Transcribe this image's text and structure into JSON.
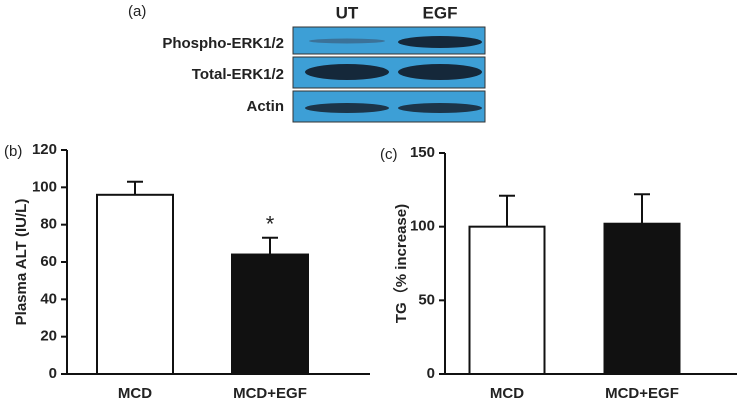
{
  "blot": {
    "label": "(a)",
    "lanes": [
      "UT",
      "EGF"
    ],
    "rows": [
      "Phospho-ERK1/2",
      "Total-ERK1/2",
      "Actin"
    ]
  },
  "chart_data": [
    {
      "type": "bar",
      "label": "(b)",
      "ylabel": "Plasma ALT (IU/L)",
      "categories": [
        "MCD",
        "MCD+EGF"
      ],
      "values": [
        96,
        64
      ],
      "errors": [
        7,
        9
      ],
      "colors": [
        "#ffffff",
        "#111111"
      ],
      "ylim": [
        0,
        120
      ],
      "yticks": [
        0,
        20,
        40,
        60,
        80,
        100,
        120
      ],
      "annotations": [
        {
          "text": "*",
          "category": "MCD+EGF"
        }
      ]
    },
    {
      "type": "bar",
      "label": "(c)",
      "ylabel": "TG（% increase)",
      "categories": [
        "MCD",
        "MCD+EGF"
      ],
      "values": [
        100,
        102
      ],
      "errors": [
        21,
        20
      ],
      "colors": [
        "#ffffff",
        "#111111"
      ],
      "ylim": [
        0,
        150
      ],
      "yticks": [
        0,
        50,
        100,
        150
      ]
    }
  ]
}
